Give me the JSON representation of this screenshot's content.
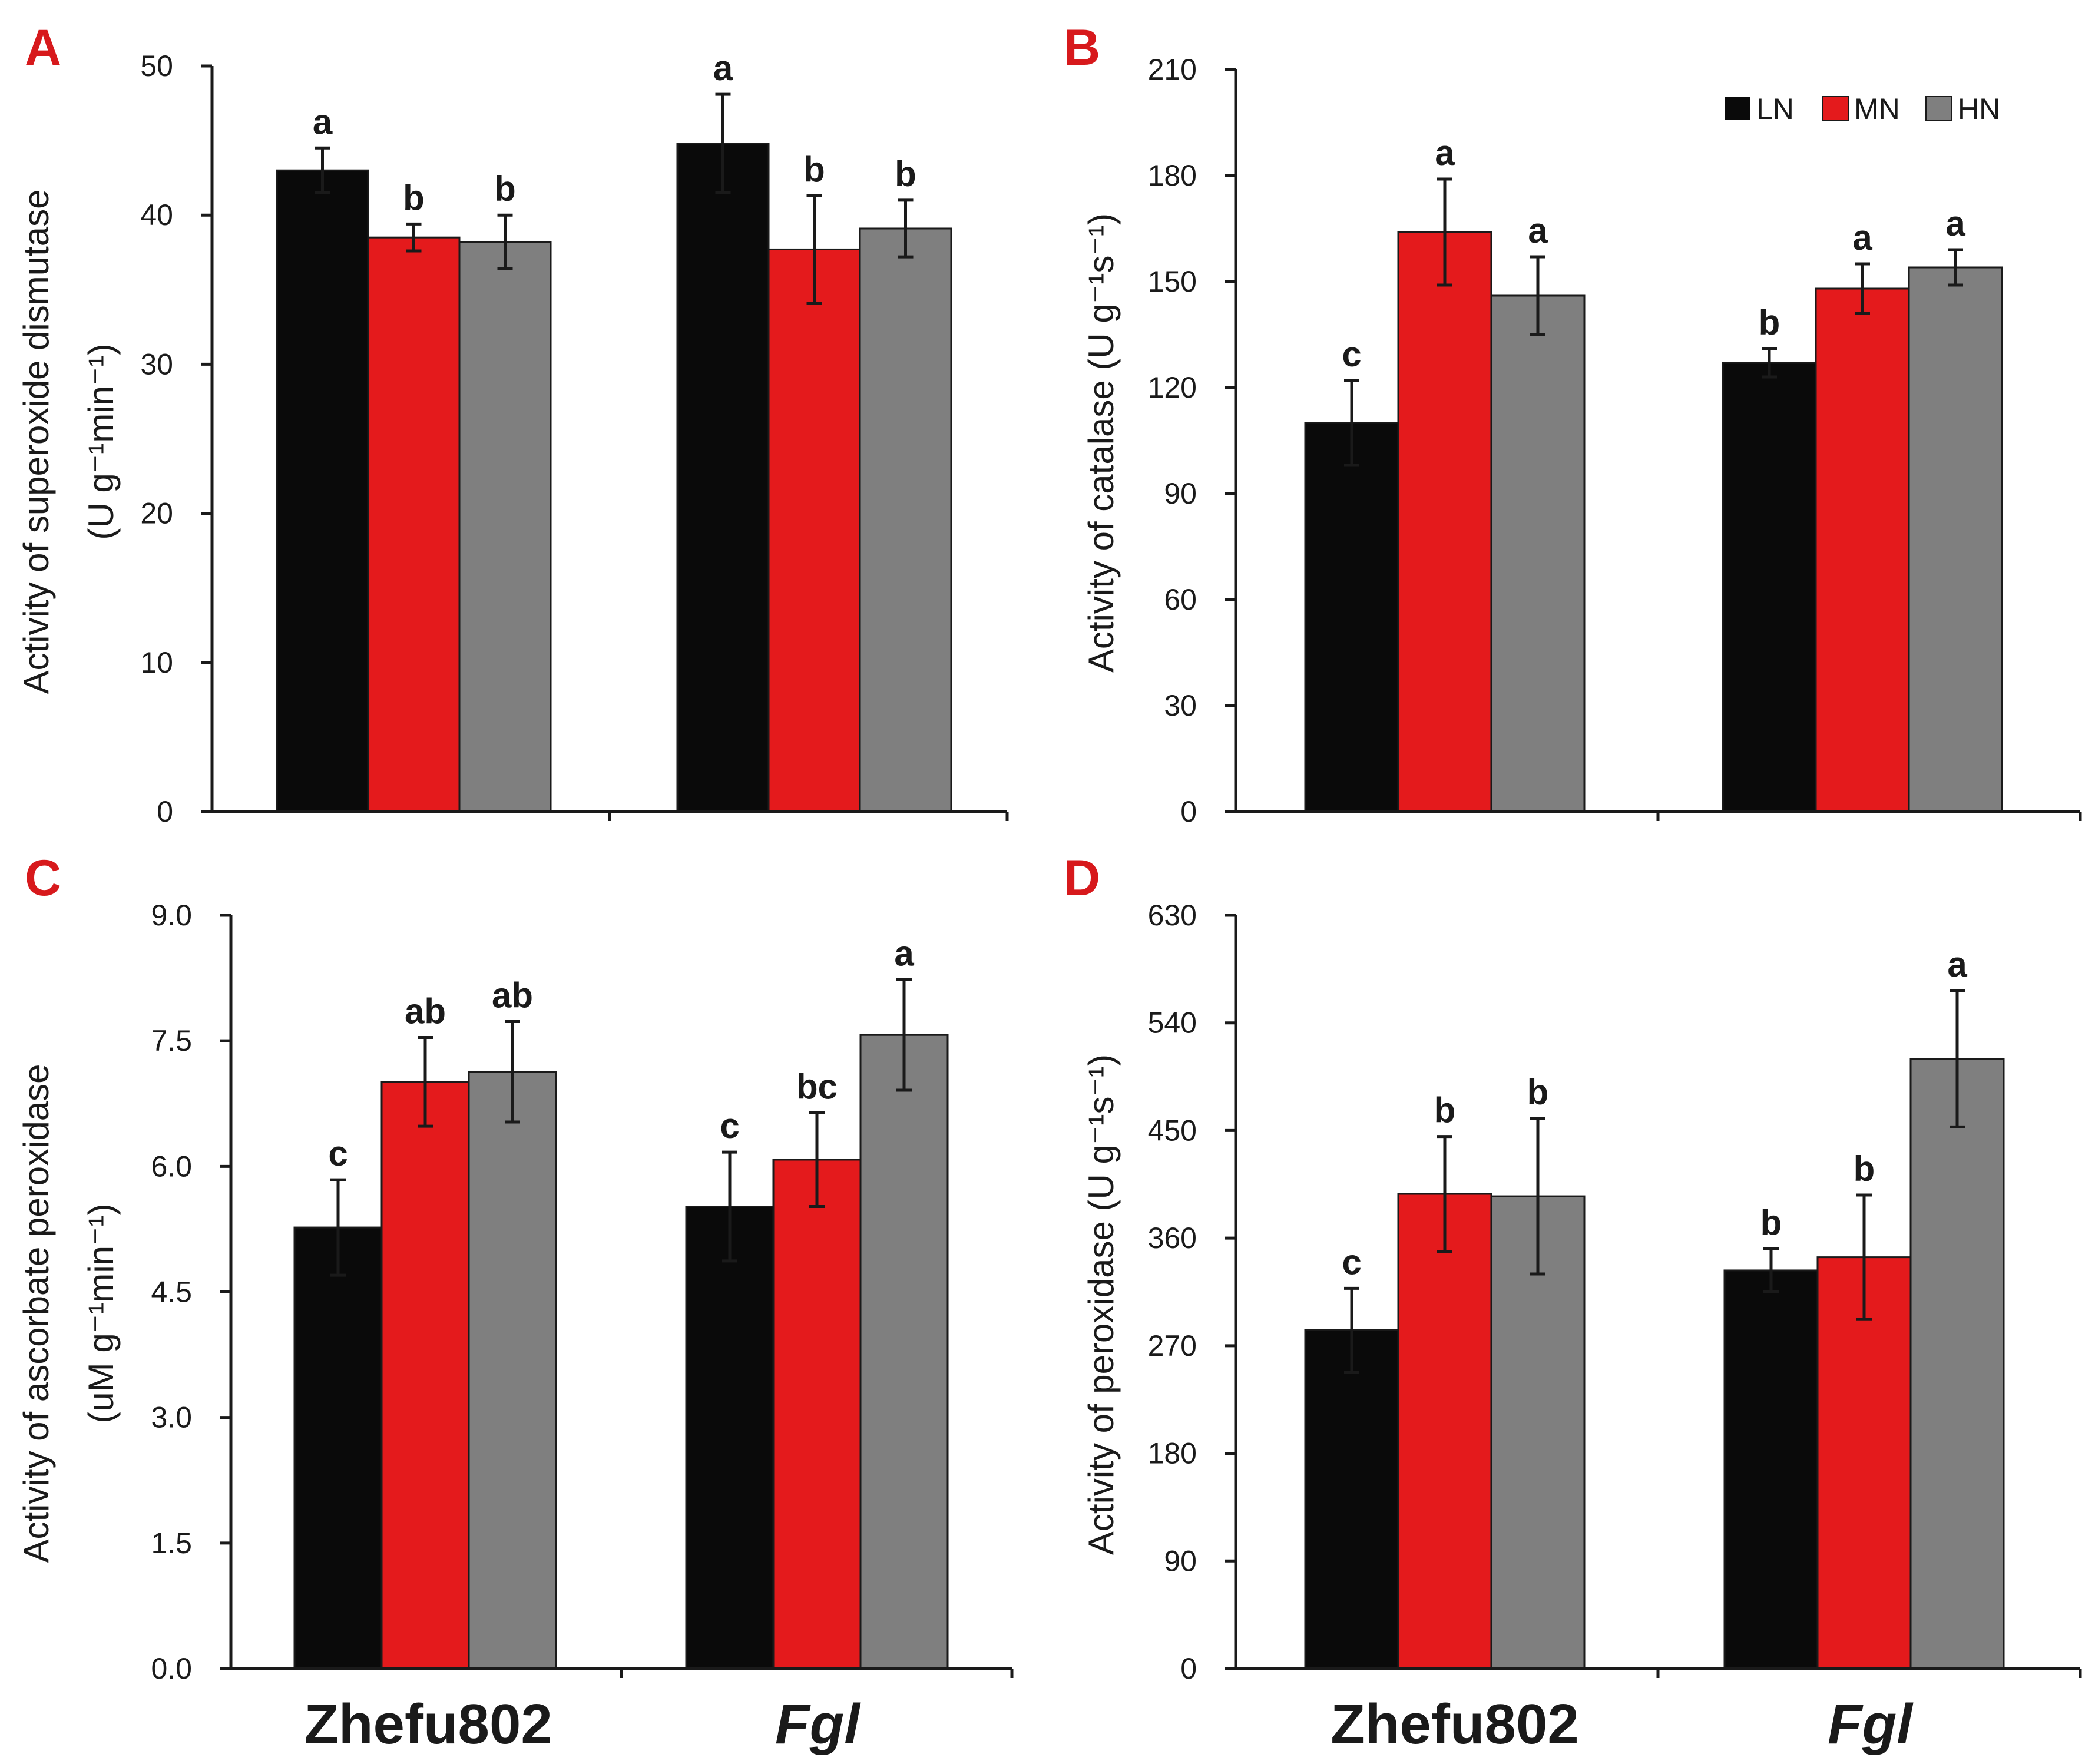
{
  "colors": {
    "LN": "#0a0a0a",
    "MN": "#e41a1c",
    "HN": "#7f7f7f",
    "panel_label": "#d7191c",
    "axis": "#1a1a1a"
  },
  "legend": [
    "LN",
    "MN",
    "HN"
  ],
  "categories": [
    "Zhefu802",
    "Fgl"
  ],
  "chart_data": [
    {
      "panel": "A",
      "type": "bar",
      "title": "",
      "ylabel_line1": "Activity of superoxide dismutase",
      "ylabel_line2": "(U g⁻¹min⁻¹)",
      "ylim": [
        0,
        50
      ],
      "ytick_step": 10,
      "yticks": [
        "0",
        "10",
        "20",
        "30",
        "40",
        "50"
      ],
      "categories": [
        "Zhefu802",
        "Fgl"
      ],
      "series": [
        {
          "name": "LN",
          "values": [
            43.0,
            44.8
          ],
          "errors": [
            1.5,
            3.3
          ],
          "letters": [
            "a",
            "a"
          ]
        },
        {
          "name": "MN",
          "values": [
            38.5,
            37.7
          ],
          "errors": [
            0.9,
            3.6
          ],
          "letters": [
            "b",
            "b"
          ]
        },
        {
          "name": "HN",
          "values": [
            38.2,
            39.1
          ],
          "errors": [
            1.8,
            1.9
          ],
          "letters": [
            "b",
            "b"
          ]
        }
      ]
    },
    {
      "panel": "B",
      "type": "bar",
      "title": "",
      "ylabel_line1": "Activity of catalase (U g⁻¹s⁻¹)",
      "ylabel_line2": "",
      "ylim": [
        0,
        210
      ],
      "ytick_step": 30,
      "yticks": [
        "0",
        "30",
        "60",
        "90",
        "120",
        "150",
        "180",
        "210"
      ],
      "categories": [
        "Zhefu802",
        "Fgl"
      ],
      "series": [
        {
          "name": "LN",
          "values": [
            110,
            127
          ],
          "errors": [
            12,
            4
          ],
          "letters": [
            "c",
            "b"
          ]
        },
        {
          "name": "MN",
          "values": [
            164,
            148
          ],
          "errors": [
            15,
            7
          ],
          "letters": [
            "a",
            "a"
          ]
        },
        {
          "name": "HN",
          "values": [
            146,
            154
          ],
          "errors": [
            11,
            5
          ],
          "letters": [
            "a",
            "a"
          ]
        }
      ],
      "legend_position": "top-right"
    },
    {
      "panel": "C",
      "type": "bar",
      "title": "",
      "ylabel_line1": "Activity of ascorbate peroxidase",
      "ylabel_line2": "(uM g⁻¹min⁻¹)",
      "ylim": [
        0,
        9.0
      ],
      "ytick_step": 1.5,
      "yticks": [
        "0.0",
        "1.5",
        "3.0",
        "4.5",
        "6.0",
        "7.5",
        "9.0"
      ],
      "categories": [
        "Zhefu802",
        "Fgl"
      ],
      "series": [
        {
          "name": "LN",
          "values": [
            5.27,
            5.52
          ],
          "errors": [
            0.57,
            0.65
          ],
          "letters": [
            "c",
            "c"
          ]
        },
        {
          "name": "MN",
          "values": [
            7.01,
            6.08
          ],
          "errors": [
            0.53,
            0.56
          ],
          "letters": [
            "ab",
            "bc"
          ]
        },
        {
          "name": "HN",
          "values": [
            7.13,
            7.57
          ],
          "errors": [
            0.6,
            0.66
          ],
          "letters": [
            "ab",
            "a"
          ]
        }
      ]
    },
    {
      "panel": "D",
      "type": "bar",
      "title": "",
      "ylabel_line1": "Activity of peroxidase (U g⁻¹s⁻¹)",
      "ylabel_line2": "",
      "ylim": [
        0,
        630
      ],
      "ytick_step": 90,
      "yticks": [
        "0",
        "90",
        "180",
        "270",
        "360",
        "450",
        "540",
        "630"
      ],
      "categories": [
        "Zhefu802",
        "Fgl"
      ],
      "series": [
        {
          "name": "LN",
          "values": [
            283,
            333
          ],
          "errors": [
            35,
            18
          ],
          "letters": [
            "c",
            "b"
          ]
        },
        {
          "name": "MN",
          "values": [
            397,
            344
          ],
          "errors": [
            48,
            52
          ],
          "letters": [
            "b",
            "b"
          ]
        },
        {
          "name": "HN",
          "values": [
            395,
            510
          ],
          "errors": [
            65,
            57
          ],
          "letters": [
            "b",
            "a"
          ]
        }
      ]
    }
  ]
}
